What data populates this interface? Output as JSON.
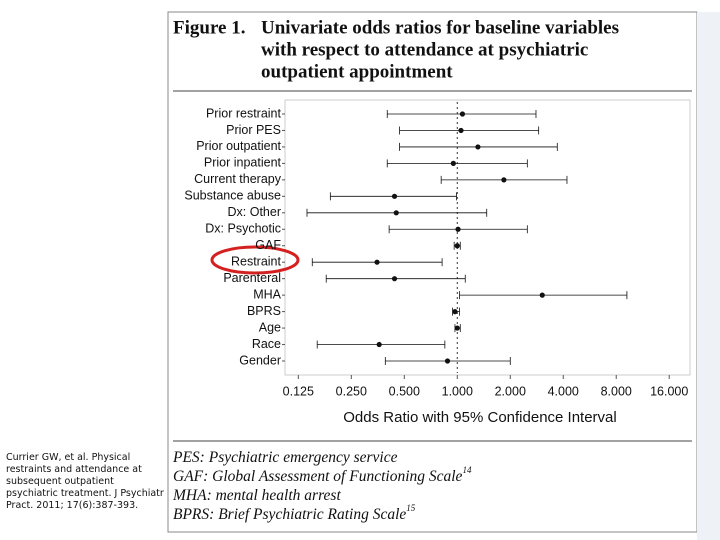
{
  "caption": "Currier GW, et al. Physical restraints and attendance at subsequent outpatient psychiatric treatment. J Psychiatr Pract. 2011; 17(6):387-393.",
  "chart_data": {
    "type": "forest",
    "title_label": "Figure 1.",
    "title_lines": [
      "Univariate odds ratios for baseline variables",
      "with respect to attendance at psychiatric",
      "outpatient appointment"
    ],
    "xlabel": "Odds Ratio with 95% Confidence Interval",
    "xscale": "log",
    "categories": [
      "Prior restraint",
      "Prior PES",
      "Prior outpatient",
      "Prior inpatient",
      "Current therapy",
      "Substance abuse",
      "Dx: Other",
      "Dx: Psychotic",
      "GAF",
      "Restraint",
      "Parenteral",
      "MHA",
      "BPRS",
      "Age",
      "Race",
      "Gender"
    ],
    "values": [
      1.07,
      1.05,
      1.31,
      0.95,
      1.84,
      0.44,
      0.45,
      1.01,
      1.0,
      0.35,
      0.44,
      3.04,
      0.97,
      1.0,
      0.36,
      0.88
    ],
    "lower": [
      0.4,
      0.47,
      0.47,
      0.4,
      0.81,
      0.19,
      0.14,
      0.41,
      0.96,
      0.15,
      0.18,
      1.03,
      0.94,
      0.97,
      0.16,
      0.39
    ],
    "upper": [
      2.8,
      2.9,
      3.7,
      2.5,
      4.2,
      0.99,
      1.47,
      2.5,
      1.04,
      0.82,
      1.11,
      9.2,
      1.03,
      1.04,
      0.85,
      2.0
    ],
    "color": "#111111",
    "refline": 1,
    "xlim": [
      0.105,
      21
    ],
    "xticks": [
      0.125,
      {
        "value": 0.25,
        "label": "0.250"
      },
      {
        "value": 0.5,
        "label": "0.500"
      },
      {
        "value": 1,
        "label": "1.000"
      },
      {
        "value": 2,
        "label": "2.000"
      },
      {
        "value": 4,
        "label": "4.000"
      },
      {
        "value": 8,
        "label": "8.000"
      },
      {
        "value": 16,
        "label": "16.000"
      }
    ],
    "notes": [
      {
        "text": "PES: Psychiatric emergency service"
      },
      {
        "text": "GAF: Global Assessment of Functioning Scale",
        "ref": "14"
      },
      {
        "text": "MHA: mental health arrest"
      },
      {
        "text": "BPRS: Brief Psychiatric Rating Scale",
        "ref": "15"
      }
    ]
  }
}
